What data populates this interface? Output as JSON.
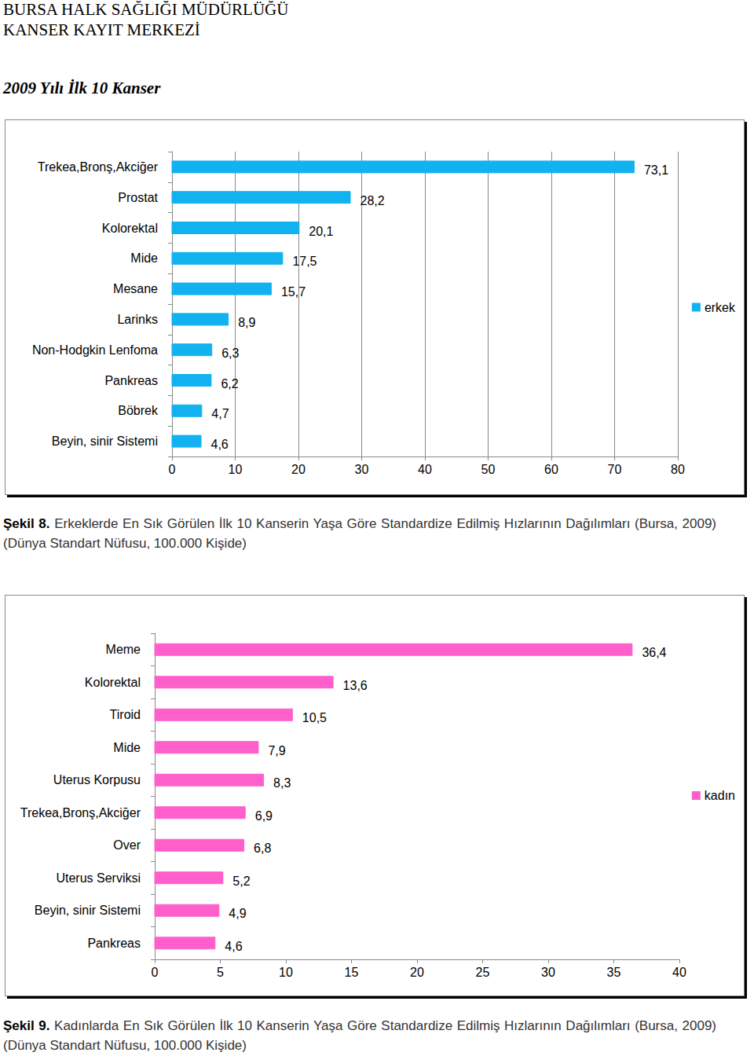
{
  "header": [
    "BURSA HALK SAĞLIĞI MÜDÜRLÜĞÜ",
    "KANSER KAYIT MERKEZİ"
  ],
  "heading": "2009 Yılı İlk 10 Kanser",
  "chart_data": [
    {
      "type": "bar",
      "orientation": "horizontal",
      "caption_label": "Şekil 8.",
      "caption": "Erkeklerde En Sık Görülen İlk 10 Kanserin Yaşa Göre Standardize Edilmiş Hızlarının Dağılımları (Bursa, 2009) (Dünya Standart Nüfusu, 100.000 Kişide)",
      "categories": [
        "Trekea,Bronş,Akciğer",
        "Prostat",
        "Kolorektal",
        "Mide",
        "Mesane",
        "Larinks",
        "Non-Hodgkin Lenfoma",
        "Pankreas",
        "Böbrek",
        "Beyin, sinir Sistemi"
      ],
      "series": [
        {
          "name": "erkek",
          "color": "#12b2f0",
          "values": [
            73.1,
            28.2,
            20.1,
            17.5,
            15.7,
            8.9,
            6.3,
            6.2,
            4.7,
            4.6
          ],
          "value_labels": [
            "73,1",
            "28,2",
            "20,1",
            "17,5",
            "15,7",
            "8,9",
            "6,3",
            "6,2",
            "4,7",
            "4,6"
          ]
        }
      ],
      "xlim": [
        0,
        80
      ],
      "xticks": [
        0,
        10,
        20,
        30,
        40,
        50,
        60,
        70,
        80
      ],
      "grid": true,
      "legend": "right",
      "data_labels": true
    },
    {
      "type": "bar",
      "orientation": "horizontal",
      "caption_label": "Şekil 9.",
      "caption": "Kadınlarda En Sık Görülen İlk 10 Kanserin Yaşa Göre Standardize Edilmiş Hızlarının Dağılımları (Bursa, 2009) (Dünya Standart Nüfusu, 100.000 Kişide)",
      "categories": [
        "Meme",
        "Kolorektal",
        "Tiroid",
        "Mide",
        "Uterus Korpusu",
        "Trekea,Bronş,Akciğer",
        "Over",
        "Uterus Serviksi",
        "Beyin, sinir Sistemi",
        "Pankreas"
      ],
      "series": [
        {
          "name": "kadın",
          "color": "#ff5fcb",
          "values": [
            36.4,
            13.6,
            10.5,
            7.9,
            8.3,
            6.9,
            6.8,
            5.2,
            4.9,
            4.6
          ],
          "value_labels": [
            "36,4",
            "13,6",
            "10,5",
            "7,9",
            "8,3",
            "6,9",
            "6,8",
            "5,2",
            "4,9",
            "4,6"
          ]
        }
      ],
      "xlim": [
        0,
        40
      ],
      "xticks": [
        0,
        5,
        10,
        15,
        20,
        25,
        30,
        35,
        40
      ],
      "grid": false,
      "legend": "right",
      "data_labels": true
    }
  ]
}
